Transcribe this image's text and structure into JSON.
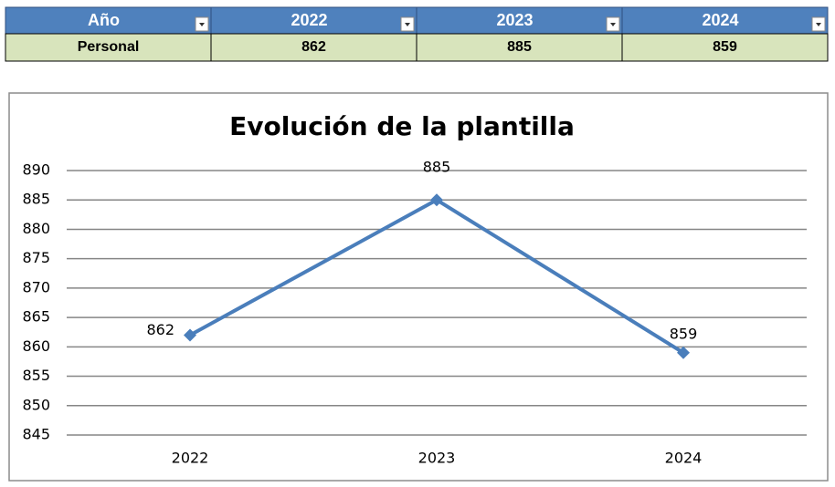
{
  "table": {
    "header": [
      "Año",
      "2022",
      "2023",
      "2024"
    ],
    "rows": [
      [
        "Personal",
        862,
        885,
        859
      ]
    ]
  },
  "chart_data": {
    "type": "line",
    "title": "Evolución de la plantilla",
    "categories": [
      "2022",
      "2023",
      "2024"
    ],
    "values": [
      862,
      885,
      859
    ],
    "color": "#4a7ebb",
    "ylim": [
      845,
      890
    ],
    "yticks": [
      845,
      850,
      855,
      860,
      865,
      870,
      875,
      880,
      885,
      890
    ],
    "grid": true,
    "data_labels": true
  }
}
